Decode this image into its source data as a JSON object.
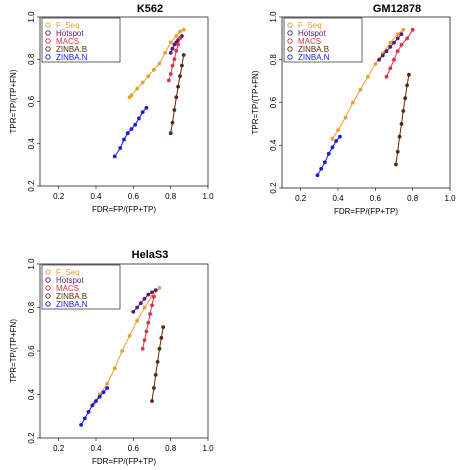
{
  "chart_data": [
    {
      "type": "scatter",
      "title": "K562",
      "xlabel": "FDR=FP/(FP+TP)",
      "ylabel": "TPR=TP/(TP+FN)",
      "xlim": [
        0.1,
        1.0
      ],
      "ylim": [
        0.2,
        1.0
      ],
      "xticks": [
        "0.2",
        "0.4",
        "0.6",
        "0.8",
        "1.0"
      ],
      "yticks": [
        "0.2",
        "0.4",
        "0.6",
        "0.8",
        "1.0"
      ],
      "legend": "top-left",
      "series": [
        {
          "name": "F_Seq",
          "color": "#e8a030",
          "points": [
            [
              0.58,
              0.62
            ],
            [
              0.59,
              0.63
            ],
            [
              0.62,
              0.66
            ],
            [
              0.65,
              0.69
            ],
            [
              0.68,
              0.72
            ],
            [
              0.71,
              0.75
            ],
            [
              0.74,
              0.78
            ],
            [
              0.77,
              0.83
            ],
            [
              0.8,
              0.88
            ],
            [
              0.83,
              0.91
            ],
            [
              0.85,
              0.93
            ],
            [
              0.87,
              0.94
            ]
          ]
        },
        {
          "name": "Hotspot",
          "color": "#5a1a6e",
          "points": [
            [
              0.8,
              0.83
            ],
            [
              0.81,
              0.85
            ],
            [
              0.82,
              0.87
            ],
            [
              0.83,
              0.88
            ],
            [
              0.84,
              0.89
            ],
            [
              0.85,
              0.9
            ],
            [
              0.86,
              0.91
            ]
          ]
        },
        {
          "name": "MACS",
          "color": "#e0304a",
          "points": [
            [
              0.79,
              0.7
            ],
            [
              0.8,
              0.73
            ],
            [
              0.81,
              0.77
            ],
            [
              0.82,
              0.8
            ],
            [
              0.83,
              0.84
            ],
            [
              0.84,
              0.87
            ],
            [
              0.85,
              0.9
            ]
          ]
        },
        {
          "name": "ZINBA.B",
          "color": "#5a2810",
          "points": [
            [
              0.8,
              0.45
            ],
            [
              0.81,
              0.5
            ],
            [
              0.82,
              0.56
            ],
            [
              0.83,
              0.62
            ],
            [
              0.84,
              0.67
            ],
            [
              0.85,
              0.72
            ],
            [
              0.86,
              0.77
            ],
            [
              0.87,
              0.82
            ]
          ]
        },
        {
          "name": "ZINBA.N",
          "color": "#1a1ae0",
          "points": [
            [
              0.5,
              0.34
            ],
            [
              0.53,
              0.38
            ],
            [
              0.55,
              0.42
            ],
            [
              0.57,
              0.45
            ],
            [
              0.59,
              0.47
            ],
            [
              0.61,
              0.49
            ],
            [
              0.63,
              0.52
            ],
            [
              0.65,
              0.55
            ],
            [
              0.67,
              0.57
            ]
          ]
        }
      ]
    },
    {
      "type": "scatter",
      "title": "GM12878",
      "xlabel": "FDR=FP/(FP+TP)",
      "ylabel": "TPR=TP/(TP+FN)",
      "xlim": [
        0.1,
        1.0
      ],
      "ylim": [
        0.2,
        1.0
      ],
      "xticks": [
        "0.2",
        "0.4",
        "0.6",
        "0.8",
        "1.0"
      ],
      "yticks": [
        "0.2",
        "0.4",
        "0.6",
        "0.8",
        "1.0"
      ],
      "legend": "top-left",
      "series": [
        {
          "name": "F_Seq",
          "color": "#e8a030",
          "points": [
            [
              0.37,
              0.43
            ],
            [
              0.4,
              0.47
            ],
            [
              0.44,
              0.53
            ],
            [
              0.48,
              0.6
            ],
            [
              0.52,
              0.66
            ],
            [
              0.56,
              0.72
            ],
            [
              0.6,
              0.78
            ],
            [
              0.64,
              0.83
            ],
            [
              0.68,
              0.88
            ],
            [
              0.72,
              0.92
            ],
            [
              0.75,
              0.94
            ]
          ]
        },
        {
          "name": "Hotspot",
          "color": "#5a1a6e",
          "points": [
            [
              0.62,
              0.8
            ],
            [
              0.64,
              0.82
            ],
            [
              0.66,
              0.84
            ],
            [
              0.68,
              0.86
            ],
            [
              0.7,
              0.88
            ],
            [
              0.72,
              0.9
            ],
            [
              0.74,
              0.92
            ]
          ]
        },
        {
          "name": "MACS",
          "color": "#e0304a",
          "points": [
            [
              0.66,
              0.72
            ],
            [
              0.68,
              0.76
            ],
            [
              0.7,
              0.8
            ],
            [
              0.72,
              0.84
            ],
            [
              0.74,
              0.87
            ],
            [
              0.77,
              0.9
            ],
            [
              0.8,
              0.94
            ]
          ]
        },
        {
          "name": "ZINBA.B",
          "color": "#5a2810",
          "points": [
            [
              0.71,
              0.31
            ],
            [
              0.72,
              0.37
            ],
            [
              0.73,
              0.44
            ],
            [
              0.74,
              0.5
            ],
            [
              0.75,
              0.56
            ],
            [
              0.76,
              0.62
            ],
            [
              0.77,
              0.68
            ],
            [
              0.78,
              0.73
            ]
          ]
        },
        {
          "name": "ZINBA.N",
          "color": "#1a1ae0",
          "points": [
            [
              0.29,
              0.26
            ],
            [
              0.31,
              0.29
            ],
            [
              0.33,
              0.32
            ],
            [
              0.35,
              0.36
            ],
            [
              0.37,
              0.39
            ],
            [
              0.39,
              0.42
            ],
            [
              0.41,
              0.44
            ]
          ]
        }
      ]
    },
    {
      "type": "scatter",
      "title": "HelaS3",
      "xlabel": "FDR=FP/(FP+TP)",
      "ylabel": "TPR=TP/(TP+FN)",
      "xlim": [
        0.1,
        1.0
      ],
      "ylim": [
        0.2,
        1.0
      ],
      "xticks": [
        "0.2",
        "0.4",
        "0.6",
        "0.8",
        "1.0"
      ],
      "yticks": [
        "0.2",
        "0.4",
        "0.6",
        "0.8",
        "1.0"
      ],
      "legend": "top-left",
      "series": [
        {
          "name": "F_Seq",
          "color": "#e8a030",
          "points": [
            [
              0.36,
              0.32
            ],
            [
              0.39,
              0.36
            ],
            [
              0.42,
              0.4
            ],
            [
              0.46,
              0.45
            ],
            [
              0.5,
              0.52
            ],
            [
              0.54,
              0.6
            ],
            [
              0.58,
              0.67
            ],
            [
              0.62,
              0.74
            ],
            [
              0.66,
              0.8
            ],
            [
              0.7,
              0.85
            ],
            [
              0.74,
              0.89
            ]
          ]
        },
        {
          "name": "Hotspot",
          "color": "#5a1a6e",
          "points": [
            [
              0.6,
              0.78
            ],
            [
              0.62,
              0.8
            ],
            [
              0.64,
              0.82
            ],
            [
              0.66,
              0.84
            ],
            [
              0.68,
              0.86
            ],
            [
              0.7,
              0.87
            ],
            [
              0.72,
              0.88
            ]
          ]
        },
        {
          "name": "MACS",
          "color": "#e0304a",
          "points": [
            [
              0.65,
              0.61
            ],
            [
              0.66,
              0.65
            ],
            [
              0.67,
              0.69
            ],
            [
              0.68,
              0.73
            ],
            [
              0.69,
              0.77
            ],
            [
              0.7,
              0.81
            ],
            [
              0.71,
              0.85
            ]
          ]
        },
        {
          "name": "ZINBA.B",
          "color": "#5a2810",
          "points": [
            [
              0.7,
              0.37
            ],
            [
              0.71,
              0.43
            ],
            [
              0.72,
              0.49
            ],
            [
              0.73,
              0.55
            ],
            [
              0.74,
              0.61
            ],
            [
              0.75,
              0.66
            ],
            [
              0.76,
              0.71
            ]
          ]
        },
        {
          "name": "ZINBA.N",
          "color": "#1a1ae0",
          "points": [
            [
              0.32,
              0.26
            ],
            [
              0.34,
              0.29
            ],
            [
              0.36,
              0.32
            ],
            [
              0.38,
              0.35
            ],
            [
              0.4,
              0.37
            ],
            [
              0.42,
              0.39
            ],
            [
              0.44,
              0.41
            ],
            [
              0.46,
              0.43
            ]
          ]
        }
      ]
    }
  ]
}
